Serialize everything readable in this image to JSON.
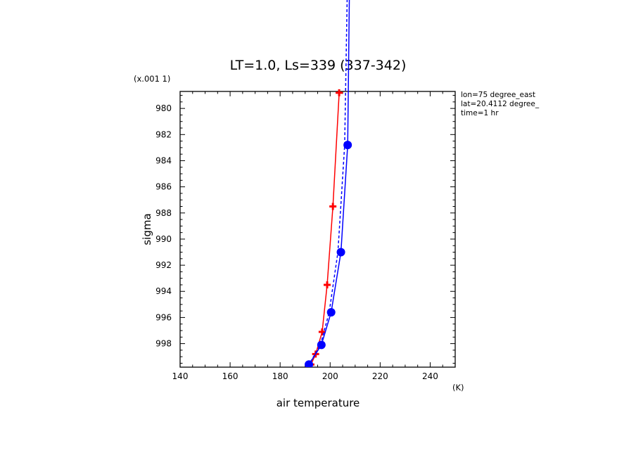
{
  "chart_data": {
    "type": "line",
    "title": "LT=1.0, Ls=339 (337-342)",
    "xlabel": "air temperature",
    "x_unit": "(K)",
    "ylabel": "sigma",
    "y_scale_note": "(x.001 1)",
    "xlim": [
      140,
      250
    ],
    "ylim": [
      999.8,
      978.7
    ],
    "y_inverted": true,
    "x_ticks": [
      140,
      160,
      180,
      200,
      220,
      240
    ],
    "x_tick_labels": [
      "140",
      "160",
      "180",
      "200",
      "220",
      "240"
    ],
    "y_ticks": [
      980,
      982,
      984,
      986,
      988,
      990,
      992,
      994,
      996,
      998
    ],
    "y_tick_labels": [
      "980",
      "982",
      "984",
      "986",
      "988",
      "990",
      "992",
      "994",
      "996",
      "998"
    ],
    "annotations": [
      "lon=75 degree_east",
      "lat=20.4112 degree_",
      "time=1 hr"
    ],
    "series": [
      {
        "color": "#ff0000",
        "line": "solid",
        "marker": "plus",
        "points": [
          [
            203.6,
            978.8
          ],
          [
            201.1,
            987.5
          ],
          [
            198.8,
            993.5
          ],
          [
            196.8,
            997.1
          ],
          [
            194.2,
            998.8
          ],
          [
            192.3,
            999.6
          ]
        ]
      },
      {
        "color": "#0000ff",
        "line": "solid",
        "marker": "dot",
        "points": [
          [
            208.0,
            966.0
          ],
          [
            207.0,
            982.8
          ],
          [
            204.3,
            991.0
          ],
          [
            200.4,
            995.6
          ],
          [
            196.5,
            998.1
          ],
          [
            191.5,
            999.6
          ]
        ]
      },
      {
        "color": "#0000ff",
        "line": "dashed",
        "marker": "none",
        "points": [
          [
            207.3,
            966.0
          ],
          [
            205.8,
            982.8
          ],
          [
            203.1,
            991.0
          ],
          [
            199.6,
            995.6
          ],
          [
            196.1,
            998.1
          ],
          [
            191.5,
            999.6
          ]
        ]
      }
    ]
  }
}
